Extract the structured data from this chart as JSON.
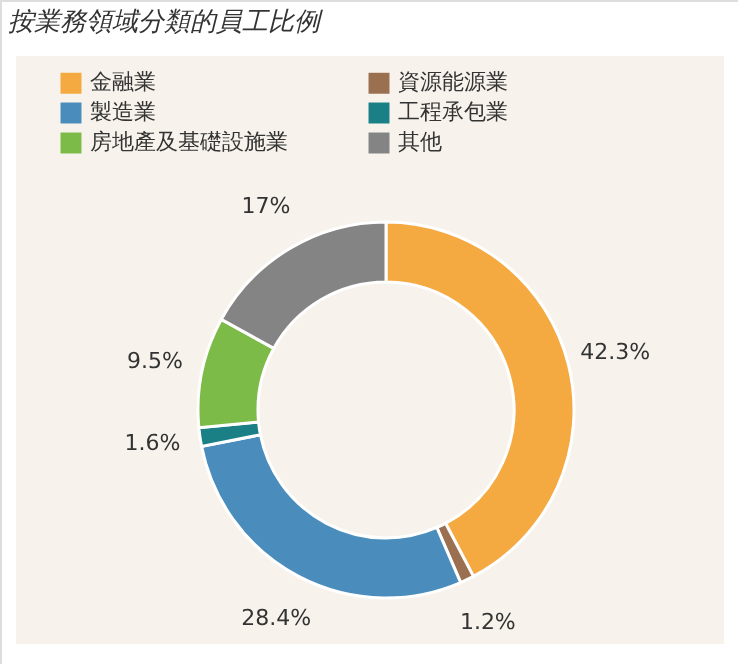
{
  "chart_data": {
    "type": "donut",
    "title": "按業務領域分類的員工比例",
    "categories": [
      "金融業",
      "資源能源業",
      "製造業",
      "工程承包業",
      "房地產及基礎設施業",
      "其他"
    ],
    "values": [
      42.3,
      1.2,
      28.4,
      1.6,
      9.5,
      17
    ],
    "value_labels": [
      "42.3%",
      "1.2%",
      "28.4%",
      "1.6%",
      "9.5%",
      "17%"
    ],
    "colors": [
      "#f5a941",
      "#9a7050",
      "#4a8dbd",
      "#1a8086",
      "#7dbb48",
      "#848484"
    ],
    "legend": "top left"
  }
}
